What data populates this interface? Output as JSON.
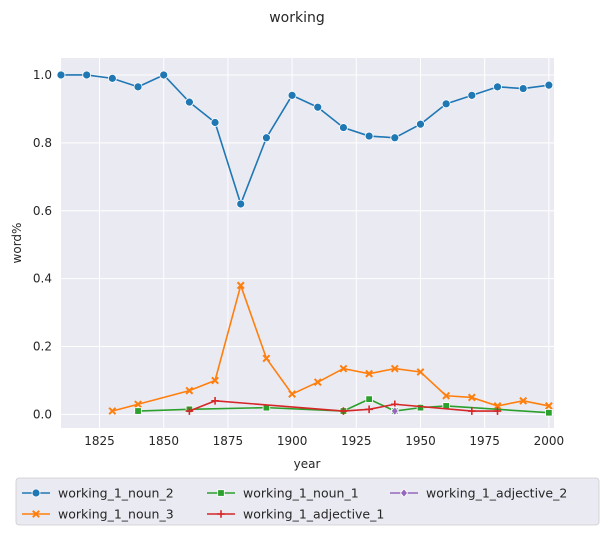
{
  "chart_data": {
    "type": "line",
    "title": "working",
    "xlabel": "year",
    "ylabel": "word%",
    "xlim": [
      1810,
      2002
    ],
    "ylim": [
      -0.04,
      1.05
    ],
    "xticks": [
      1825,
      1850,
      1875,
      1900,
      1925,
      1950,
      1975,
      2000
    ],
    "yticks": [
      0.0,
      0.2,
      0.4,
      0.6,
      0.8,
      1.0
    ],
    "ytick_labels": [
      "0.0",
      "0.2",
      "0.4",
      "0.6",
      "0.8",
      "1.0"
    ],
    "grid": true,
    "legend_placement": "bottom",
    "series": [
      {
        "name": "working_1_noun_2",
        "color": "#1f77b4",
        "marker": "circle",
        "x": [
          1810,
          1820,
          1830,
          1840,
          1850,
          1860,
          1870,
          1880,
          1890,
          1900,
          1910,
          1920,
          1930,
          1940,
          1950,
          1960,
          1970,
          1980,
          1990,
          2000
        ],
        "y": [
          1.0,
          1.0,
          0.99,
          0.965,
          1.0,
          0.92,
          0.86,
          0.62,
          0.815,
          0.94,
          0.905,
          0.845,
          0.82,
          0.815,
          0.855,
          0.915,
          0.94,
          0.965,
          0.96,
          0.97
        ]
      },
      {
        "name": "working_1_noun_3",
        "color": "#ff7f0e",
        "marker": "x",
        "x": [
          1830,
          1840,
          1860,
          1870,
          1880,
          1890,
          1900,
          1910,
          1920,
          1930,
          1940,
          1950,
          1960,
          1970,
          1980,
          1990,
          2000
        ],
        "y": [
          0.01,
          0.03,
          0.07,
          0.1,
          0.38,
          0.165,
          0.06,
          0.095,
          0.135,
          0.12,
          0.135,
          0.125,
          0.055,
          0.05,
          0.025,
          0.04,
          0.025
        ]
      },
      {
        "name": "working_1_noun_1",
        "color": "#2ca02c",
        "marker": "square",
        "x": [
          1840,
          1860,
          1890,
          1920,
          1930,
          1940,
          1950,
          1960,
          2000
        ],
        "y": [
          0.01,
          0.015,
          0.02,
          0.01,
          0.045,
          0.01,
          0.02,
          0.025,
          0.005
        ]
      },
      {
        "name": "working_1_adjective_1",
        "color": "#d62728",
        "marker": "plus",
        "x": [
          1860,
          1870,
          1920,
          1930,
          1940,
          1970,
          1980
        ],
        "y": [
          0.01,
          0.04,
          0.01,
          0.015,
          0.03,
          0.01,
          0.01
        ]
      },
      {
        "name": "working_1_adjective_2",
        "color": "#9467bd",
        "marker": "diamond",
        "x": [
          1940
        ],
        "y": [
          0.01
        ]
      }
    ]
  }
}
